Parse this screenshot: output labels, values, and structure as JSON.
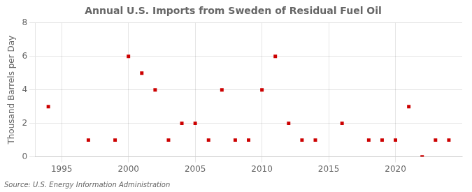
{
  "chart_data": {
    "type": "scatter",
    "title": "Annual U.S. Imports from Sweden of Residual Fuel Oil",
    "ylabel": "Thousand Barrels per Day",
    "annotations": [
      "Source: U.S. Energy Information Administration"
    ],
    "x": [
      1994,
      1997,
      1999,
      2000,
      2001,
      2002,
      2003,
      2004,
      2005,
      2006,
      2007,
      2008,
      2009,
      2010,
      2011,
      2012,
      2013,
      2014,
      2016,
      2018,
      2019,
      2020,
      2021,
      2022,
      2023,
      2024
    ],
    "values": [
      3,
      1,
      1,
      6,
      5,
      4,
      1,
      2,
      2,
      1,
      4,
      1,
      1,
      4,
      6,
      2,
      1,
      1,
      2,
      1,
      1,
      1,
      3,
      0,
      1,
      1
    ],
    "color": "#cc0000",
    "marker": "square",
    "xlim": [
      1993,
      2025
    ],
    "xticks": [
      1995,
      2000,
      2005,
      2010,
      2015,
      2020
    ],
    "ylim": [
      0,
      8
    ],
    "yticks": [
      0,
      2,
      4,
      6,
      8
    ],
    "grid": true
  }
}
